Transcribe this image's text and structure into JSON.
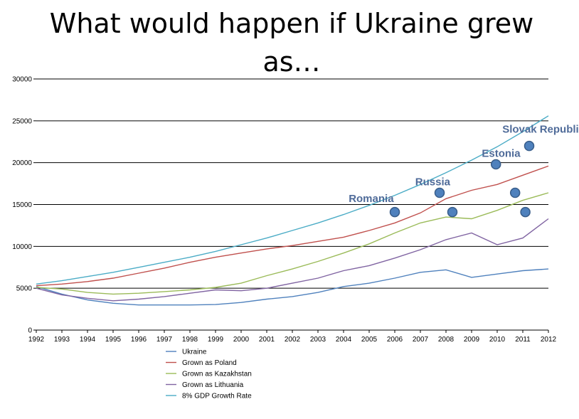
{
  "chart_data": {
    "type": "line",
    "title": "What would happen if Ukraine grew as…",
    "xlabel": "",
    "ylabel": "",
    "ylim": [
      0,
      30000
    ],
    "yticks": [
      "0",
      "5000",
      "10000",
      "15000",
      "20000",
      "25000",
      "30000"
    ],
    "grid": true,
    "legend_position": "bottom-left",
    "x": [
      "1992",
      "1993",
      "1994",
      "1995",
      "1996",
      "1997",
      "1998",
      "1999",
      "2000",
      "2001",
      "2002",
      "2003",
      "2004",
      "2005",
      "2006",
      "2007",
      "2008",
      "2009",
      "2010",
      "2011",
      "2012"
    ],
    "series": [
      {
        "name": "Ukraine",
        "color": "#4F81BD",
        "values": [
          5200,
          4300,
          3600,
          3200,
          3000,
          3000,
          3000,
          3050,
          3300,
          3700,
          4000,
          4500,
          5200,
          5600,
          6200,
          6900,
          7200,
          6300,
          6700,
          7100,
          7300
        ]
      },
      {
        "name": "Grown as Poland",
        "color": "#C0504D",
        "values": [
          5300,
          5500,
          5800,
          6200,
          6800,
          7400,
          8100,
          8700,
          9200,
          9700,
          10100,
          10600,
          11100,
          11900,
          12800,
          14000,
          15700,
          16700,
          17400,
          18500,
          19600
        ]
      },
      {
        "name": "Grown as Kazakhstan",
        "color": "#9BBB59",
        "values": [
          5100,
          4900,
          4500,
          4300,
          4400,
          4600,
          4800,
          5100,
          5600,
          6500,
          7300,
          8200,
          9200,
          10300,
          11600,
          12800,
          13500,
          13300,
          14300,
          15500,
          16400
        ]
      },
      {
        "name": "Grown as Lithuania",
        "color": "#8064A2",
        "values": [
          5000,
          4200,
          3800,
          3500,
          3700,
          4000,
          4400,
          4800,
          4700,
          5000,
          5600,
          6200,
          7100,
          7700,
          8600,
          9600,
          10800,
          11600,
          10200,
          11000,
          13300
        ]
      },
      {
        "name": "8% GDP Growth Rate",
        "color": "#4BACC6",
        "values": [
          5500,
          5900,
          6400,
          6900,
          7500,
          8100,
          8700,
          9400,
          10200,
          11000,
          11900,
          12800,
          13800,
          14900,
          16100,
          17400,
          18800,
          20300,
          21900,
          23700,
          25600
        ]
      }
    ],
    "points": [
      {
        "x": 2006,
        "y": 14100
      },
      {
        "x": 2007.75,
        "y": 16400
      },
      {
        "x": 2008.25,
        "y": 14100
      },
      {
        "x": 2009.95,
        "y": 19800
      },
      {
        "x": 2010.7,
        "y": 16400
      },
      {
        "x": 2011.1,
        "y": 14100
      },
      {
        "x": 2011.25,
        "y": 22000
      }
    ],
    "annotations": [
      {
        "text": "Romania",
        "x": 2004.2,
        "y": 15300
      },
      {
        "text": "Russia",
        "x": 2006.8,
        "y": 17300
      },
      {
        "text": "Estonia",
        "x": 2009.4,
        "y": 20700
      },
      {
        "text": "Slovak Republic",
        "x": 2010.2,
        "y": 23600
      }
    ],
    "annotation_color": "#4F6B99",
    "point_color": "#4F81BD"
  }
}
